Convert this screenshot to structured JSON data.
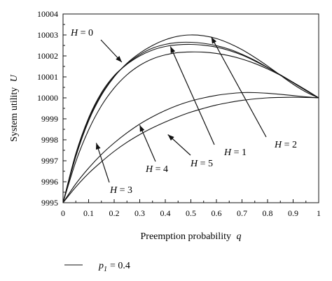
{
  "chart_data": {
    "type": "line",
    "xlabel": "Preemption probability",
    "xlabel_var": "q",
    "ylabel": "System utility",
    "ylabel_var": "U",
    "xlim": [
      0,
      1
    ],
    "ylim": [
      9995,
      10004
    ],
    "x_ticks": [
      0,
      0.1,
      0.2,
      0.3,
      0.4,
      0.5,
      0.6,
      0.7,
      0.8,
      0.9,
      1
    ],
    "x_tick_labels": [
      "0",
      "0.1",
      "0.2",
      "0.3",
      "0.4",
      "0.5",
      "0.6",
      "0.7",
      "0.8",
      "0.9",
      "1"
    ],
    "y_ticks": [
      9995,
      9996,
      9997,
      9998,
      9999,
      10000,
      10001,
      10002,
      10003,
      10004
    ],
    "y_tick_labels": [
      "9995",
      "9996",
      "9997",
      "9998",
      "9999",
      "10000",
      "10001",
      "10002",
      "10003",
      "10004"
    ],
    "grid": false,
    "x": [
      0,
      0.05,
      0.1,
      0.15,
      0.2,
      0.25,
      0.3,
      0.35,
      0.4,
      0.45,
      0.5,
      0.55,
      0.6,
      0.65,
      0.7,
      0.75,
      0.8,
      0.85,
      0.9,
      0.95,
      1
    ],
    "series": [
      {
        "name": "H = 0",
        "values": [
          9995.0,
          9997.34,
          9999.04,
          10000.24,
          10001.06,
          10001.6,
          10002.0,
          10002.28,
          10002.45,
          10002.53,
          10002.55,
          10002.51,
          10002.42,
          10002.26,
          10002.04,
          10001.76,
          10001.44,
          10001.1,
          10000.74,
          10000.37,
          10000.0
        ]
      },
      {
        "name": "H = 1",
        "values": [
          9995.0,
          9996.96,
          9998.47,
          9999.62,
          10000.47,
          10001.1,
          10001.55,
          10001.86,
          10002.05,
          10002.16,
          10002.19,
          10002.18,
          10002.12,
          10002.01,
          10001.85,
          10001.64,
          10001.38,
          10001.08,
          10000.74,
          10000.38,
          10000.0
        ]
      },
      {
        "name": "H = 2",
        "values": [
          9995.0,
          9997.2,
          9998.9,
          10000.12,
          10001.0,
          10001.65,
          10002.13,
          10002.5,
          10002.77,
          10002.94,
          10003.0,
          10002.96,
          10002.83,
          10002.6,
          10002.3,
          10001.93,
          10001.52,
          10001.08,
          10000.65,
          10000.28,
          10000.0
        ]
      },
      {
        "name": "H = 3",
        "values": [
          9995.0,
          9997.3,
          9998.98,
          10000.17,
          10001.02,
          10001.62,
          10002.06,
          10002.37,
          10002.55,
          10002.64,
          10002.65,
          10002.6,
          10002.49,
          10002.32,
          10002.08,
          10001.79,
          10001.45,
          10001.09,
          10000.72,
          10000.35,
          10000.0
        ]
      },
      {
        "name": "H = 4",
        "values": [
          9995.0,
          9995.9,
          9996.65,
          9997.3,
          9997.85,
          9998.33,
          9998.75,
          9999.1,
          9999.4,
          9999.65,
          9999.85,
          10000.0,
          10000.12,
          10000.2,
          10000.25,
          10000.25,
          10000.22,
          10000.17,
          10000.11,
          10000.05,
          10000.0
        ]
      },
      {
        "name": "H = 5",
        "values": [
          9995.0,
          9995.75,
          9996.4,
          9996.95,
          9997.45,
          9997.88,
          9998.25,
          9998.57,
          9998.85,
          9999.1,
          9999.32,
          9999.5,
          9999.66,
          9999.78,
          9999.88,
          9999.95,
          10000.0,
          10000.02,
          10000.03,
          10000.02,
          10000.0
        ]
      }
    ],
    "annotations": [
      {
        "label": "H = 0",
        "var": "H",
        "rhs": "0",
        "target": [
          0.23,
          10001.7
        ]
      },
      {
        "label": "H = 1",
        "var": "H",
        "rhs": "1",
        "target": [
          0.42,
          10002.45
        ]
      },
      {
        "label": "H = 2",
        "var": "H",
        "rhs": "2",
        "target": [
          0.58,
          10002.9
        ]
      },
      {
        "label": "H = 3",
        "var": "H",
        "rhs": "3",
        "target": [
          0.13,
          9997.85
        ]
      },
      {
        "label": "H = 4",
        "var": "H",
        "rhs": "4",
        "target": [
          0.3,
          9998.7
        ]
      },
      {
        "label": "H = 5",
        "var": "H",
        "rhs": "5",
        "target": [
          0.41,
          9998.25
        ]
      }
    ],
    "legend": {
      "position": "bottom-left",
      "entries": [
        {
          "var": "p",
          "sub": "1",
          "rhs": "= 0.4"
        }
      ]
    }
  }
}
